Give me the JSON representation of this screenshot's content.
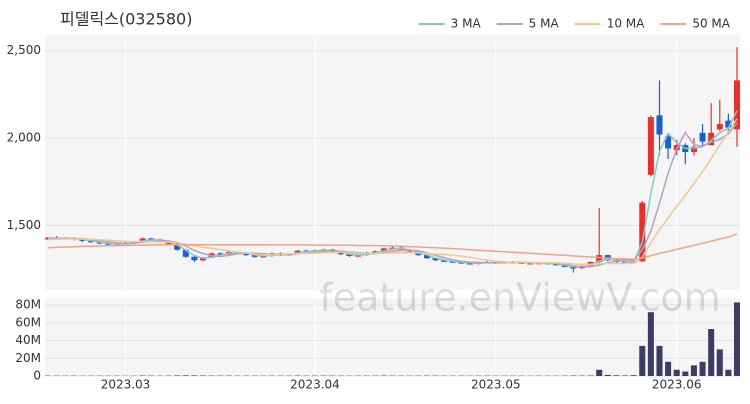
{
  "chart_data": {
    "type": "candlestick",
    "title": "피델릭스(032580)",
    "watermark": "feature.enViewV.com",
    "up_color": "#e8302f",
    "down_color": "#1e5fd0",
    "legend": "top-right",
    "categories": [
      null,
      null,
      null,
      null,
      null,
      null,
      null,
      null,
      null,
      "2023.03",
      null,
      null,
      null,
      null,
      null,
      null,
      null,
      null,
      null,
      null,
      null,
      null,
      null,
      null,
      null,
      null,
      null,
      null,
      null,
      null,
      null,
      "2023.04",
      null,
      null,
      null,
      null,
      null,
      null,
      null,
      null,
      null,
      null,
      null,
      null,
      null,
      null,
      null,
      null,
      null,
      null,
      null,
      null,
      "2023.05",
      null,
      null,
      null,
      null,
      null,
      null,
      null,
      null,
      null,
      null,
      null,
      null,
      null,
      null,
      null,
      null,
      null,
      null,
      null,
      null,
      "2023.06",
      null,
      null,
      null,
      null,
      null,
      null,
      null
    ],
    "open": [
      1420,
      1430,
      1425,
      1428,
      1420,
      1412,
      1405,
      1398,
      1390,
      1395,
      1400,
      1405,
      1425,
      1420,
      1410,
      1395,
      1360,
      1320,
      1300,
      1315,
      1340,
      1335,
      1348,
      1345,
      1330,
      1320,
      1325,
      1340,
      1330,
      1338,
      1355,
      1350,
      1358,
      1362,
      1348,
      1335,
      1325,
      1330,
      1345,
      1352,
      1368,
      1372,
      1360,
      1350,
      1330,
      1312,
      1300,
      1295,
      1290,
      1285,
      1280,
      1288,
      1290,
      1285,
      1292,
      1288,
      1285,
      1282,
      1286,
      1280,
      1275,
      1262,
      1255,
      1268,
      1290,
      1330,
      1300,
      1290,
      1285,
      1295,
      1790,
      2130,
      2010,
      1930,
      1960,
      1920,
      2030,
      1960,
      2050,
      2100,
      2050
    ],
    "high": [
      1435,
      1438,
      1432,
      1432,
      1425,
      1416,
      1410,
      1402,
      1398,
      1405,
      1410,
      1430,
      1428,
      1424,
      1412,
      1398,
      1365,
      1325,
      1320,
      1345,
      1345,
      1355,
      1352,
      1348,
      1335,
      1330,
      1345,
      1345,
      1342,
      1360,
      1360,
      1362,
      1366,
      1365,
      1350,
      1340,
      1335,
      1350,
      1356,
      1372,
      1378,
      1375,
      1365,
      1352,
      1333,
      1315,
      1304,
      1298,
      1293,
      1288,
      1292,
      1296,
      1294,
      1294,
      1296,
      1292,
      1288,
      1290,
      1290,
      1284,
      1278,
      1265,
      1272,
      1294,
      1600,
      1332,
      1305,
      1294,
      1300,
      1640,
      2130,
      2330,
      2020,
      1990,
      1970,
      2000,
      2080,
      2200,
      2220,
      2140,
      2520
    ],
    "low": [
      1415,
      1420,
      1420,
      1415,
      1405,
      1400,
      1392,
      1385,
      1386,
      1390,
      1395,
      1400,
      1415,
      1405,
      1390,
      1355,
      1315,
      1290,
      1295,
      1312,
      1330,
      1330,
      1340,
      1325,
      1315,
      1315,
      1320,
      1325,
      1326,
      1333,
      1345,
      1346,
      1352,
      1345,
      1330,
      1320,
      1320,
      1326,
      1340,
      1348,
      1362,
      1356,
      1345,
      1325,
      1308,
      1296,
      1290,
      1285,
      1280,
      1275,
      1276,
      1284,
      1280,
      1282,
      1284,
      1280,
      1278,
      1278,
      1276,
      1270,
      1262,
      1230,
      1250,
      1262,
      1285,
      1295,
      1285,
      1280,
      1280,
      1290,
      1780,
      1900,
      1880,
      1900,
      1850,
      1900,
      1950,
      1960,
      2040,
      2030,
      1950
    ],
    "close": [
      1430,
      1425,
      1428,
      1420,
      1412,
      1405,
      1398,
      1390,
      1395,
      1400,
      1405,
      1425,
      1420,
      1410,
      1395,
      1360,
      1320,
      1300,
      1315,
      1340,
      1335,
      1348,
      1345,
      1330,
      1320,
      1325,
      1340,
      1330,
      1338,
      1355,
      1350,
      1358,
      1362,
      1348,
      1335,
      1325,
      1330,
      1345,
      1352,
      1368,
      1372,
      1360,
      1350,
      1330,
      1312,
      1300,
      1295,
      1290,
      1285,
      1280,
      1288,
      1290,
      1285,
      1292,
      1288,
      1285,
      1282,
      1286,
      1280,
      1275,
      1262,
      1255,
      1268,
      1290,
      1330,
      1300,
      1290,
      1285,
      1295,
      1630,
      2120,
      2020,
      1940,
      1960,
      1920,
      1950,
      1980,
      2030,
      2080,
      2060,
      2330
    ],
    "ylim": [
      1130,
      2590
    ],
    "yticks": [
      {
        "value": 1500,
        "label": "1,500"
      },
      {
        "value": 2000,
        "label": "2,000"
      },
      {
        "value": 2500,
        "label": "2,500"
      }
    ],
    "series": [
      {
        "name": "3 MA",
        "color": "#7ecdc4",
        "values": [
          1428,
          1427,
          1426,
          1424,
          1420,
          1412,
          1405,
          1398,
          1393,
          1395,
          1400,
          1410,
          1417,
          1418,
          1408,
          1388,
          1358,
          1327,
          1312,
          1318,
          1330,
          1341,
          1343,
          1341,
          1332,
          1325,
          1328,
          1332,
          1336,
          1341,
          1348,
          1354,
          1357,
          1356,
          1348,
          1336,
          1330,
          1333,
          1342,
          1355,
          1364,
          1367,
          1361,
          1347,
          1331,
          1314,
          1302,
          1295,
          1290,
          1285,
          1284,
          1286,
          1288,
          1289,
          1288,
          1288,
          1285,
          1284,
          1283,
          1280,
          1272,
          1264,
          1262,
          1271,
          1296,
          1307,
          1307,
          1292,
          1290,
          1403,
          1682,
          1923,
          2027,
          1973,
          1940,
          1943,
          1950,
          1987,
          2030,
          2057,
          2157
        ]
      },
      {
        "name": "5 MA",
        "color": "#b4a0c4",
        "values": [
          1426,
          1426,
          1426,
          1425,
          1423,
          1418,
          1412,
          1406,
          1400,
          1396,
          1398,
          1403,
          1408,
          1412,
          1411,
          1402,
          1382,
          1357,
          1339,
          1327,
          1322,
          1328,
          1337,
          1340,
          1340,
          1338,
          1334,
          1332,
          1331,
          1338,
          1343,
          1346,
          1352,
          1355,
          1353,
          1347,
          1343,
          1340,
          1337,
          1344,
          1353,
          1357,
          1358,
          1354,
          1343,
          1328,
          1315,
          1303,
          1294,
          1290,
          1288,
          1286,
          1286,
          1287,
          1289,
          1288,
          1287,
          1287,
          1285,
          1282,
          1277,
          1268,
          1263,
          1263,
          1273,
          1286,
          1296,
          1301,
          1300,
          1360,
          1468,
          1627,
          1799,
          1938,
          2032,
          1962,
          1954,
          1976,
          1992,
          2024,
          2086
        ]
      },
      {
        "name": "10 MA",
        "color": "#f0c890",
        "values": [
          1420,
          1421,
          1422,
          1422,
          1422,
          1420,
          1418,
          1415,
          1412,
          1409,
          1407,
          1407,
          1406,
          1405,
          1404,
          1400,
          1392,
          1383,
          1375,
          1369,
          1362,
          1355,
          1348,
          1342,
          1334,
          1330,
          1332,
          1335,
          1338,
          1339,
          1340,
          1341,
          1343,
          1345,
          1345,
          1343,
          1340,
          1339,
          1340,
          1341,
          1343,
          1344,
          1343,
          1341,
          1339,
          1336,
          1333,
          1329,
          1324,
          1317,
          1308,
          1301,
          1295,
          1291,
          1288,
          1286,
          1287,
          1286,
          1286,
          1285,
          1283,
          1279,
          1277,
          1277,
          1281,
          1282,
          1282,
          1282,
          1283,
          1318,
          1402,
          1476,
          1542,
          1609,
          1672,
          1739,
          1808,
          1882,
          1960,
          2036,
          2111
        ]
      },
      {
        "name": "50 MA",
        "color": "#f4a08a",
        "values": [
          1372,
          1374,
          1376,
          1378,
          1380,
          1381,
          1382,
          1383,
          1384,
          1385,
          1386,
          1387,
          1388,
          1388,
          1389,
          1389,
          1389,
          1389,
          1389,
          1389,
          1389,
          1389,
          1389,
          1389,
          1389,
          1389,
          1388,
          1388,
          1388,
          1388,
          1388,
          1387,
          1387,
          1387,
          1386,
          1386,
          1385,
          1385,
          1384,
          1383,
          1382,
          1380,
          1378,
          1376,
          1374,
          1372,
          1370,
          1367,
          1364,
          1361,
          1358,
          1355,
          1352,
          1349,
          1346,
          1343,
          1340,
          1337,
          1334,
          1331,
          1328,
          1325,
          1322,
          1319,
          1316,
          1313,
          1310,
          1308,
          1306,
          1312,
          1327,
          1340,
          1351,
          1363,
          1374,
          1386,
          1398,
          1410,
          1422,
          1434,
          1452
        ]
      }
    ],
    "volume": {
      "color": "#3c3c64",
      "ylim": [
        0,
        88000000
      ],
      "yticks": [
        0,
        {
          "value": 20000000,
          "label": "20M"
        },
        {
          "value": 40000000,
          "label": "40M"
        },
        {
          "value": 60000000,
          "label": "60M"
        },
        {
          "value": 80000000,
          "label": "80M"
        }
      ],
      "values": [
        400000,
        350000,
        300000,
        320000,
        280000,
        300000,
        350000,
        330000,
        300000,
        280000,
        300000,
        500000,
        400000,
        350000,
        380000,
        600000,
        700000,
        650000,
        500000,
        450000,
        400000,
        420000,
        380000,
        350000,
        360000,
        330000,
        400000,
        350000,
        340000,
        420000,
        380000,
        360000,
        400000,
        380000,
        350000,
        330000,
        320000,
        380000,
        360000,
        450000,
        400000,
        380000,
        350000,
        360000,
        400000,
        380000,
        350000,
        330000,
        320000,
        300000,
        310000,
        320000,
        300000,
        310000,
        300000,
        290000,
        280000,
        300000,
        290000,
        300000,
        350000,
        500000,
        400000,
        450000,
        7000000,
        1200000,
        800000,
        600000,
        900000,
        34000000,
        72000000,
        34000000,
        16000000,
        7000000,
        5000000,
        12000000,
        16000000,
        53000000,
        30000000,
        7000000,
        83000000
      ]
    }
  }
}
